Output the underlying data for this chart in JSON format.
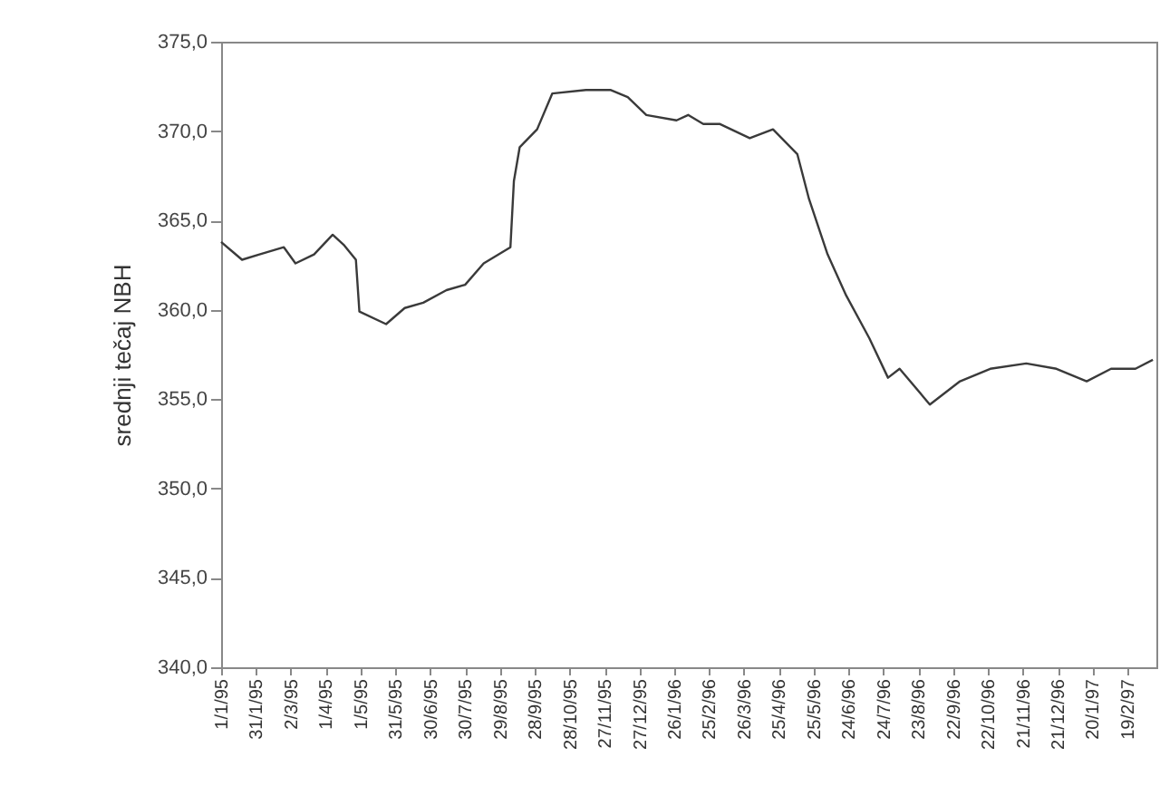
{
  "chart_data": {
    "type": "line",
    "ylabel": "srednji tečaj NBH",
    "x": [
      "1995-01-01",
      "1995-01-19",
      "1995-02-03",
      "1995-02-24",
      "1995-03-06",
      "1995-03-22",
      "1995-04-07",
      "1995-04-17",
      "1995-04-27",
      "1995-04-30",
      "1995-05-23",
      "1995-06-08",
      "1995-06-24",
      "1995-07-14",
      "1995-07-30",
      "1995-08-15",
      "1995-09-07",
      "1995-09-10",
      "1995-09-15",
      "1995-09-30",
      "1995-10-13",
      "1995-11-11",
      "1995-12-02",
      "1995-12-17",
      "1996-01-02",
      "1996-01-28",
      "1996-02-07",
      "1996-02-20",
      "1996-03-05",
      "1996-03-31",
      "1996-04-20",
      "1996-05-11",
      "1996-05-21",
      "1996-06-06",
      "1996-06-22",
      "1996-07-12",
      "1996-07-28",
      "1996-08-07",
      "1996-09-02",
      "1996-09-28",
      "1996-10-24",
      "1996-11-24",
      "1996-12-20",
      "1997-01-15",
      "1997-02-05",
      "1997-02-26",
      "1997-03-13"
    ],
    "series": [
      {
        "color": "#3a3a3a",
        "values": [
          363.8,
          362.8,
          363.1,
          363.5,
          362.6,
          363.1,
          364.2,
          363.6,
          362.8,
          359.9,
          359.2,
          360.1,
          360.4,
          361.1,
          361.4,
          362.6,
          363.5,
          367.2,
          369.1,
          370.1,
          372.1,
          372.3,
          372.3,
          371.9,
          370.9,
          370.6,
          370.9,
          370.4,
          370.4,
          369.6,
          370.1,
          368.7,
          366.2,
          363.1,
          360.8,
          358.4,
          356.2,
          356.7,
          354.7,
          356.0,
          356.7,
          357.0,
          356.7,
          356.0,
          356.7,
          356.7,
          357.2
        ]
      }
    ],
    "ylim": [
      340,
      375
    ],
    "yticks": [
      {
        "value": 340,
        "label": "340,0"
      },
      {
        "value": 345,
        "label": "345,0"
      },
      {
        "value": 350,
        "label": "350,0"
      },
      {
        "value": 355,
        "label": "355,0"
      },
      {
        "value": 360,
        "label": "360,0"
      },
      {
        "value": 365,
        "label": "365,0"
      },
      {
        "value": 370,
        "label": "370,0"
      },
      {
        "value": 375,
        "label": "375,0"
      }
    ],
    "xlim": [
      "1995-01-01",
      "1997-03-16"
    ],
    "xticks": [
      {
        "value": "1995-01-01",
        "label": "1/1/95"
      },
      {
        "value": "1995-01-31",
        "label": "31/1/95"
      },
      {
        "value": "1995-03-02",
        "label": "2/3/95"
      },
      {
        "value": "1995-04-01",
        "label": "1/4/95"
      },
      {
        "value": "1995-05-01",
        "label": "1/5/95"
      },
      {
        "value": "1995-05-31",
        "label": "31/5/95"
      },
      {
        "value": "1995-06-30",
        "label": "30/6/95"
      },
      {
        "value": "1995-07-30",
        "label": "30/7/95"
      },
      {
        "value": "1995-08-29",
        "label": "29/8/95"
      },
      {
        "value": "1995-09-28",
        "label": "28/9/95"
      },
      {
        "value": "1995-10-28",
        "label": "28/10/95"
      },
      {
        "value": "1995-11-27",
        "label": "27/11/95"
      },
      {
        "value": "1995-12-27",
        "label": "27/12/95"
      },
      {
        "value": "1996-01-26",
        "label": "26/1/96"
      },
      {
        "value": "1996-02-25",
        "label": "25/2/96"
      },
      {
        "value": "1996-03-26",
        "label": "26/3/96"
      },
      {
        "value": "1996-04-25",
        "label": "25/4/96"
      },
      {
        "value": "1996-05-25",
        "label": "25/5/96"
      },
      {
        "value": "1996-06-24",
        "label": "24/6/96"
      },
      {
        "value": "1996-07-24",
        "label": "24/7/96"
      },
      {
        "value": "1996-08-23",
        "label": "23/8/96"
      },
      {
        "value": "1996-09-22",
        "label": "22/9/96"
      },
      {
        "value": "1996-10-22",
        "label": "22/10/96"
      },
      {
        "value": "1996-11-21",
        "label": "21/11/96"
      },
      {
        "value": "1996-12-21",
        "label": "21/12/96"
      },
      {
        "value": "1997-01-20",
        "label": "20/1/97"
      },
      {
        "value": "1997-02-19",
        "label": "19/2/97"
      }
    ],
    "grid": false,
    "marker": "none",
    "line_style": "solid"
  }
}
